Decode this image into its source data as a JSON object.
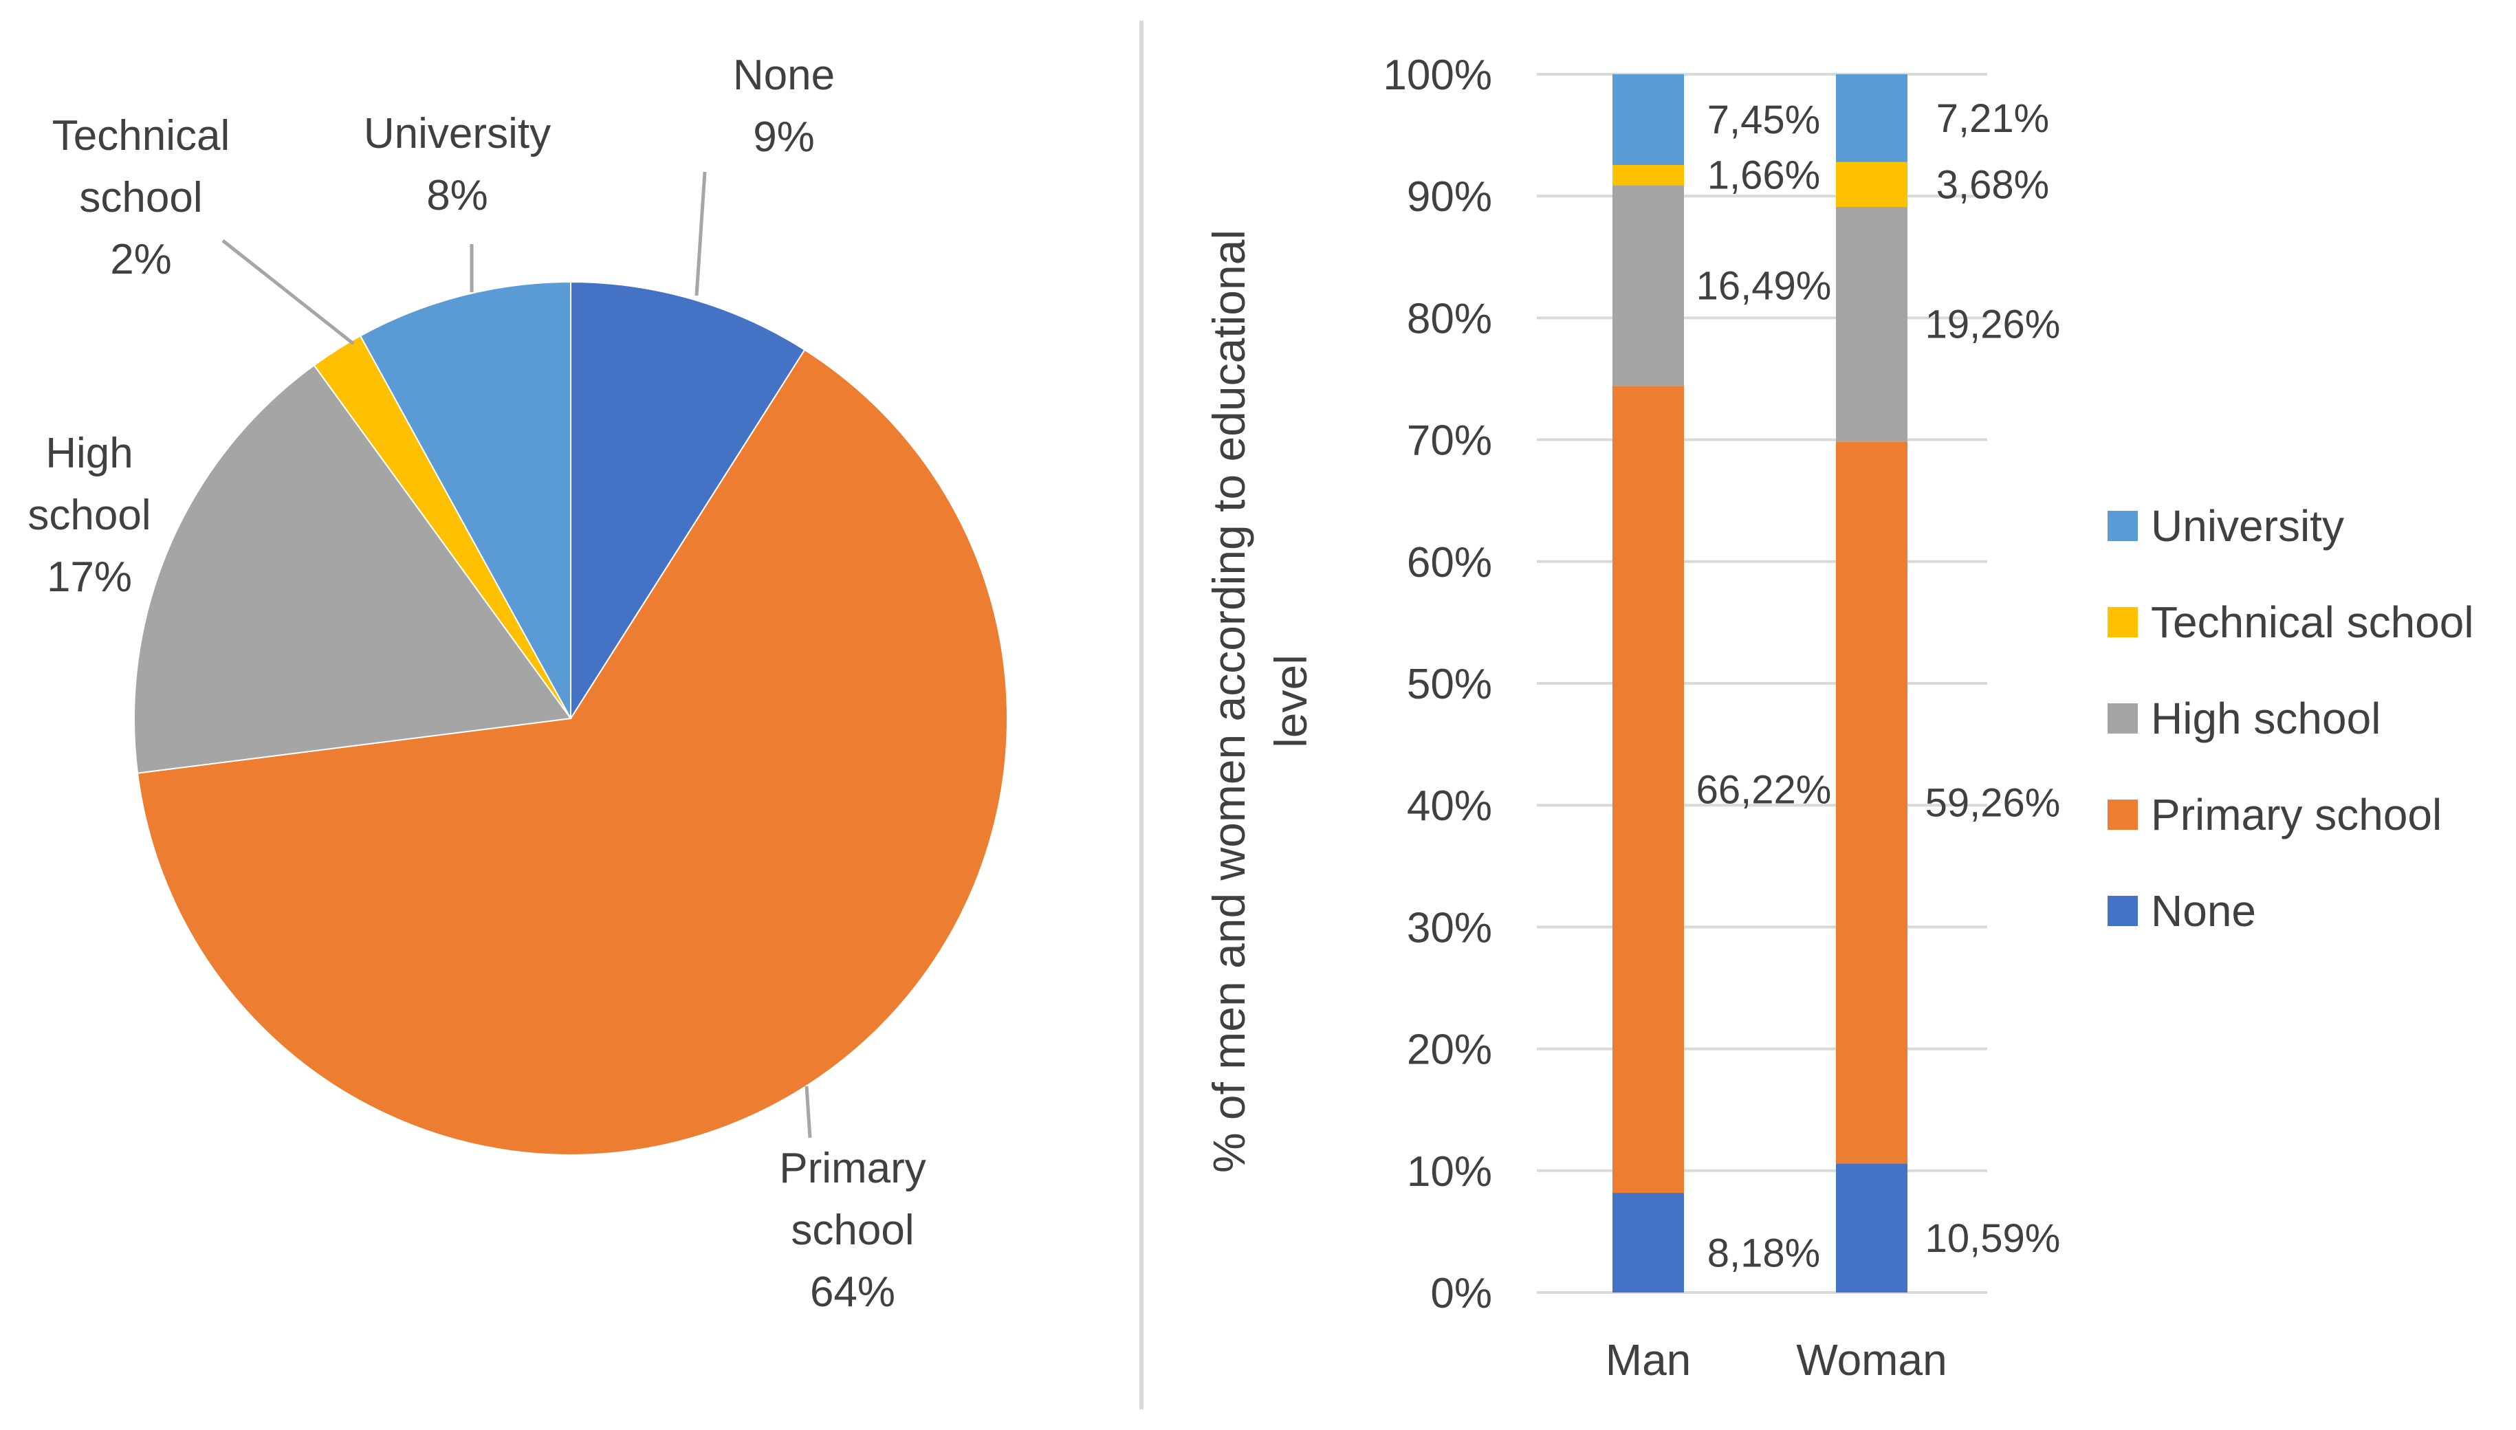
{
  "chart_data": [
    {
      "type": "pie",
      "title": "",
      "start_angle_deg": 0,
      "direction": "clockwise",
      "slices": [
        {
          "label_lines": [
            "None"
          ],
          "value": 9,
          "pct_text": "9%",
          "color": "#4472C4"
        },
        {
          "label_lines": [
            "Primary",
            "school"
          ],
          "value": 64,
          "pct_text": "64%",
          "color": "#ED7D31"
        },
        {
          "label_lines": [
            "High",
            "school"
          ],
          "value": 17,
          "pct_text": "17%",
          "color": "#A5A5A5"
        },
        {
          "label_lines": [
            "Technical",
            "school"
          ],
          "value": 2,
          "pct_text": "2%",
          "color": "#FFC000"
        },
        {
          "label_lines": [
            "University"
          ],
          "value": 8,
          "pct_text": "8%",
          "color": "#5B9BD5"
        }
      ]
    },
    {
      "type": "bar",
      "stacked": "percent",
      "title": "",
      "ylabel_lines": [
        "% of men and women according to educational",
        "level"
      ],
      "xlabel": "",
      "ylim": [
        0,
        100
      ],
      "yticks": [
        0,
        10,
        20,
        30,
        40,
        50,
        60,
        70,
        80,
        90,
        100
      ],
      "ytick_labels": [
        "0%",
        "10%",
        "20%",
        "30%",
        "40%",
        "50%",
        "60%",
        "70%",
        "80%",
        "90%",
        "100%"
      ],
      "grid": true,
      "categories": [
        "Man",
        "Woman"
      ],
      "series": [
        {
          "name": "None",
          "values": [
            8.18,
            10.59
          ],
          "labels": [
            "8,18%",
            "10,59%"
          ],
          "color": "#4472C4"
        },
        {
          "name": "Primary school",
          "values": [
            66.22,
            59.26
          ],
          "labels": [
            "66,22%",
            "59,26%"
          ],
          "color": "#ED7D31"
        },
        {
          "name": "High school",
          "values": [
            16.49,
            19.26
          ],
          "labels": [
            "16,49%",
            "19,26%"
          ],
          "color": "#A5A5A5"
        },
        {
          "name": "Technical school",
          "values": [
            1.66,
            3.68
          ],
          "labels": [
            "1,66%",
            "3,68%"
          ],
          "color": "#FFC000"
        },
        {
          "name": "University",
          "values": [
            7.45,
            7.21
          ],
          "labels": [
            "7,45%",
            "7,21%"
          ],
          "color": "#5B9BD5"
        }
      ],
      "legend_position": "right",
      "legend_order": [
        "University",
        "Technical school",
        "High school",
        "Primary school",
        "None"
      ]
    }
  ]
}
